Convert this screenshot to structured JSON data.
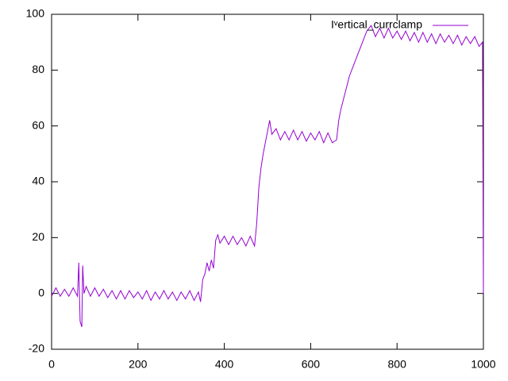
{
  "chart_data": {
    "type": "line",
    "legend": "top right",
    "xlim": [
      0,
      1000
    ],
    "xticks": [
      0,
      200,
      400,
      600,
      800,
      1000
    ],
    "ylim": [
      -20,
      100
    ],
    "yticks": [
      -20,
      0,
      20,
      40,
      60,
      80,
      100
    ],
    "series": [
      {
        "name": "Iᵛertical_currclamp",
        "color": "#9400d3",
        "x": [
          0,
          10,
          20,
          30,
          40,
          50,
          60,
          63,
          66,
          70,
          72,
          75,
          80,
          90,
          100,
          110,
          120,
          130,
          140,
          150,
          160,
          170,
          180,
          190,
          200,
          210,
          220,
          230,
          240,
          250,
          260,
          270,
          280,
          290,
          300,
          310,
          320,
          330,
          340,
          345,
          350,
          355,
          360,
          365,
          370,
          375,
          380,
          385,
          390,
          400,
          410,
          420,
          430,
          440,
          450,
          460,
          470,
          475,
          480,
          485,
          490,
          495,
          500,
          505,
          510,
          520,
          530,
          540,
          550,
          560,
          570,
          580,
          590,
          600,
          610,
          620,
          630,
          640,
          650,
          660,
          665,
          670,
          680,
          690,
          700,
          710,
          720,
          730,
          740,
          750,
          760,
          770,
          780,
          790,
          800,
          810,
          820,
          830,
          840,
          850,
          860,
          870,
          880,
          890,
          900,
          910,
          920,
          930,
          940,
          950,
          960,
          970,
          980,
          990,
          998,
          1000
        ],
        "values": [
          -1,
          2,
          -1,
          1.5,
          -1,
          2,
          -1,
          11,
          -10,
          -12,
          10,
          0,
          2.5,
          -1,
          2,
          -1,
          1.5,
          -1.5,
          1,
          -2,
          1,
          -2,
          1,
          -1.5,
          0.5,
          -2,
          1,
          -2.5,
          0.5,
          -2,
          1,
          -2,
          0.5,
          -2.5,
          0.5,
          -2,
          1,
          -2.5,
          0.5,
          -3,
          5,
          7,
          11,
          8,
          12,
          9,
          19,
          21,
          18,
          20.5,
          17.5,
          20.5,
          17.5,
          20,
          17,
          20.5,
          17,
          25,
          38,
          45,
          50,
          54,
          58,
          62,
          57,
          59,
          55,
          58,
          55,
          58.5,
          55,
          58,
          54.5,
          57.5,
          55,
          58,
          54,
          57.5,
          54,
          55,
          62,
          66,
          72,
          78,
          82,
          86,
          90,
          94,
          96,
          92,
          95,
          91.5,
          95,
          91.5,
          94,
          91,
          94,
          90.5,
          93.5,
          90,
          93.5,
          90,
          93,
          89.5,
          93,
          90,
          92.5,
          89.5,
          92.5,
          89,
          92,
          89.5,
          92,
          88.5,
          90,
          0
        ]
      }
    ]
  }
}
